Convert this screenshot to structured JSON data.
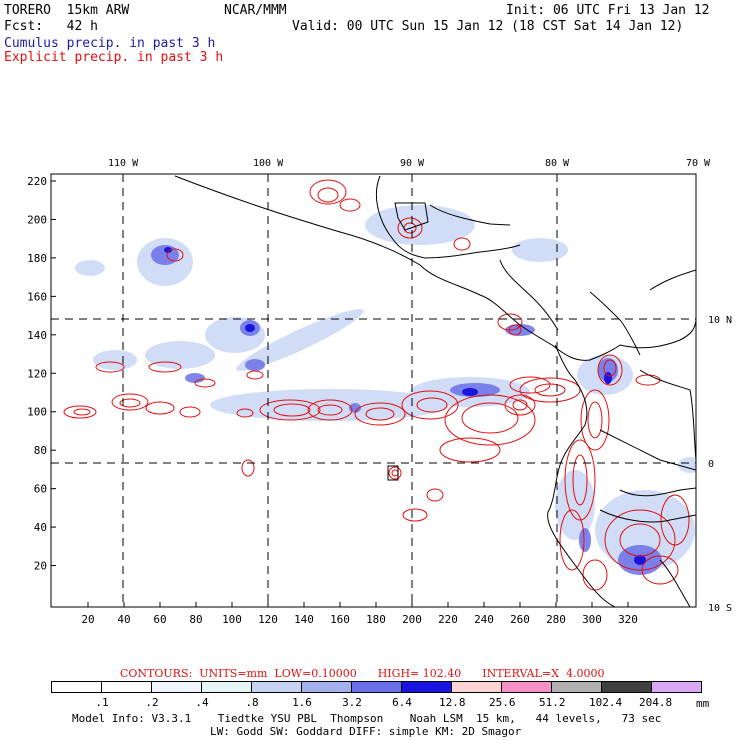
{
  "header": {
    "model": "TORERO  15km ARW",
    "org": "NCAR/MMM",
    "init": "Init: 06 UTC Fri 13 Jan 12",
    "fcst": "Fcst:   42 h",
    "valid": "Valid: 00 UTC Sun 15 Jan 12 (18 CST Sat 14 Jan 12)",
    "legend_cumulus": "Cumulus precip. in past 3 h",
    "legend_explicit": "Explicit precip. in past 3 h"
  },
  "colors": {
    "cumulus_text": "#1c1ca8",
    "explicit_text": "#e01010",
    "contour": "#e01010",
    "coast": "#000000"
  },
  "map": {
    "lon_labels": [
      "110 W",
      "100 W",
      "90 W",
      "80 W",
      "70 W"
    ],
    "lat_labels": [
      "10 N",
      "0",
      "10 S"
    ],
    "y_ticks": [
      "220",
      "200",
      "180",
      "160",
      "140",
      "120",
      "100",
      "80",
      "60",
      "40",
      "20"
    ],
    "x_ticks": [
      "20",
      "40",
      "60",
      "80",
      "100",
      "120",
      "140",
      "160",
      "180",
      "200",
      "220",
      "240",
      "260",
      "280",
      "300",
      "320"
    ]
  },
  "contours_line": {
    "prefix": "CONTOURS:  UNITS=mm  LOW=",
    "low": "0.10000",
    "high_prefix": "HIGH=",
    "high": "102.40",
    "interval_prefix": "INTERVAL=X",
    "interval": "4.0000"
  },
  "colorbar": {
    "labels": [
      ".1",
      ".2",
      ".4",
      ".8",
      "1.6",
      "3.2",
      "6.4",
      "12.8",
      "25.6",
      "51.2",
      "102.4",
      "204.8"
    ],
    "unit": "mm",
    "colors": [
      "#ffffff",
      "#ffffff",
      "#f0f4ff",
      "#e6f6f6",
      "#c6d4f4",
      "#a4b0ee",
      "#6a70e8",
      "#1a14e0",
      "#fcd4d4",
      "#f890c8",
      "#b0b0b0",
      "#404040",
      "#d8a8f4"
    ]
  },
  "footer": {
    "line1": "Model Info: V3.3.1    Tiedtke YSU PBL  Thompson    Noah LSM  15 km,   44 levels,   73 sec",
    "line2": "LW: Godd SW: Goddard DIFF: simple KM: 2D Smagor"
  }
}
